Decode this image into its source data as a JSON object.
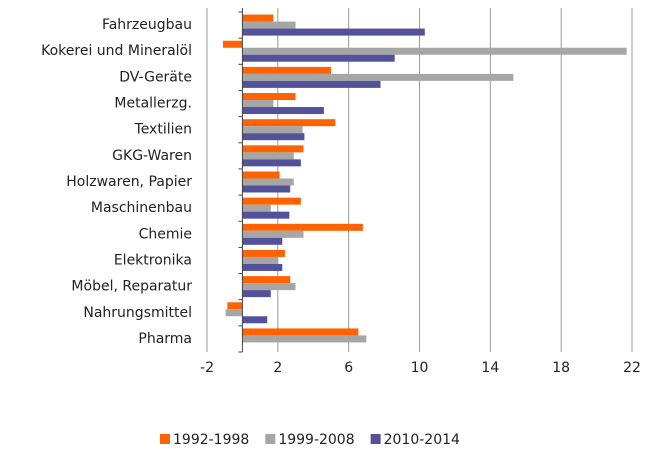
{
  "chart_data": {
    "type": "hbar",
    "categories": [
      "Fahrzeugbau",
      "Kokerei und Mineralöl",
      "DV-Geräte",
      "Metallerzg.",
      "Textilien",
      "GKG-Waren",
      "Holzwaren, Papier",
      "Maschinenbau",
      "Chemie",
      "Elektronika",
      "Möbel, Reparatur",
      "Nahrungsmittel",
      "Pharma"
    ],
    "series": [
      {
        "name": "1992-1998",
        "color": "#ff6200",
        "values": [
          1.75,
          -1.1,
          5.0,
          3.0,
          5.25,
          3.45,
          2.1,
          3.3,
          6.8,
          2.4,
          2.7,
          -0.85,
          6.55
        ]
      },
      {
        "name": "1999-2008",
        "color": "#a6a6a6",
        "values": [
          3.0,
          21.7,
          15.3,
          1.75,
          3.4,
          2.9,
          2.9,
          1.6,
          3.45,
          2.0,
          3.0,
          -0.95,
          7.0
        ]
      },
      {
        "name": "2010-2014",
        "color": "#525199",
        "values": [
          10.3,
          8.6,
          7.8,
          4.6,
          3.5,
          3.3,
          2.7,
          2.65,
          2.25,
          2.25,
          1.6,
          1.4,
          null
        ]
      }
    ],
    "xlim": [
      -2,
      22
    ],
    "xticks": [
      -2,
      2,
      6,
      10,
      14,
      18,
      22
    ],
    "grid": true,
    "legend": "bottom"
  }
}
